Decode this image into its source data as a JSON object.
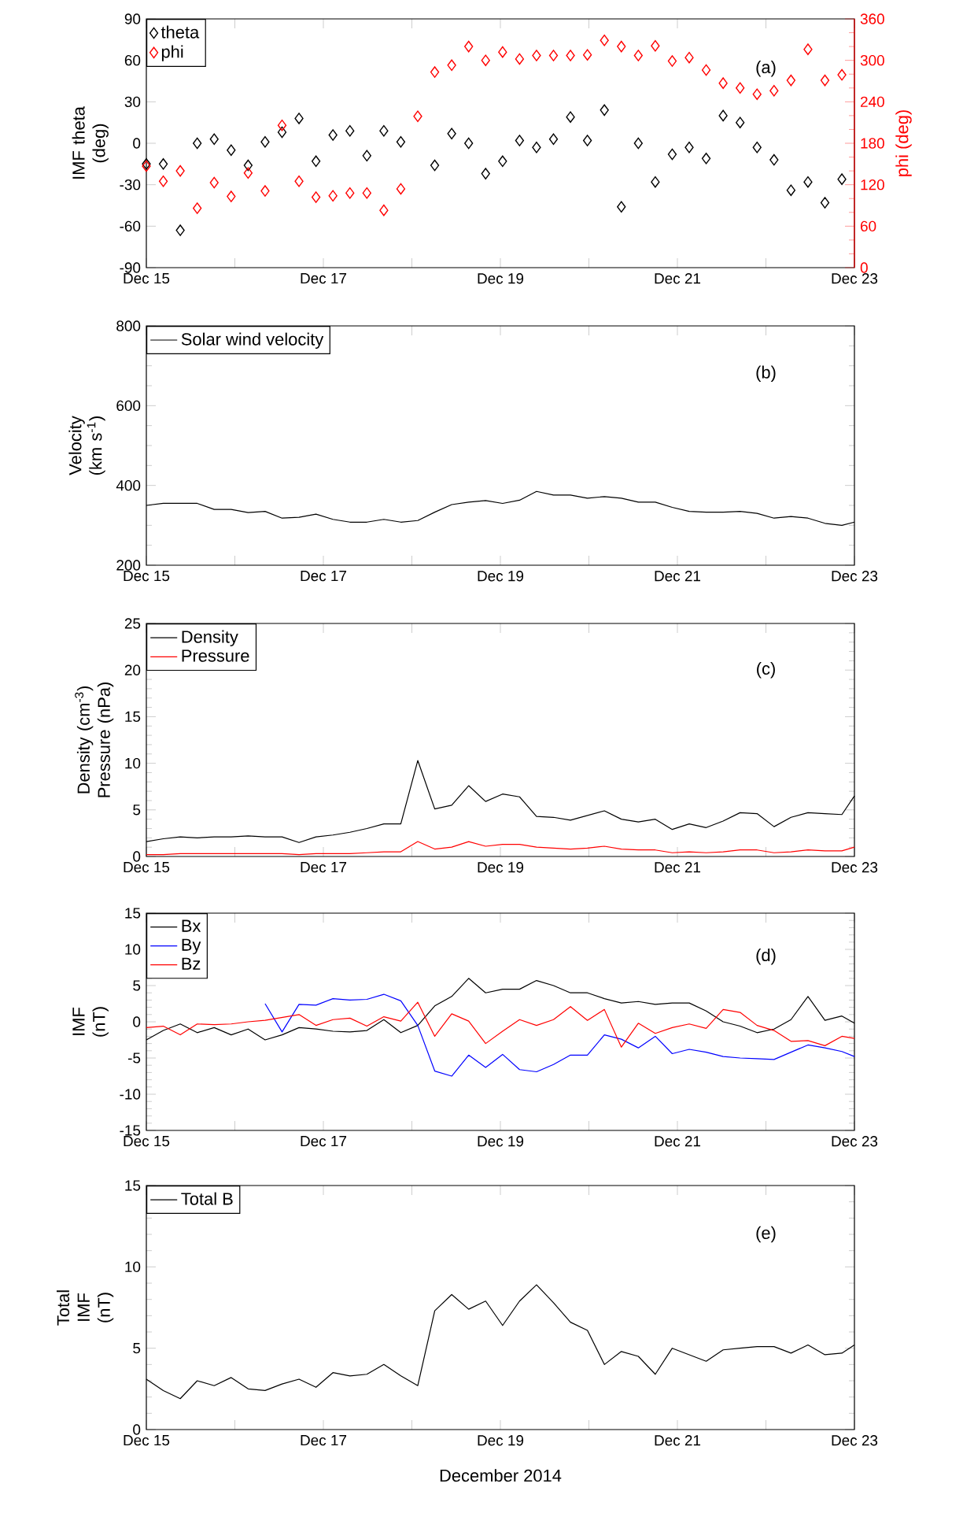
{
  "chart_data": [
    {
      "type": "scatter",
      "ylabel": "IMF theta (deg)",
      "y2label": "phi (deg)",
      "marker": "diamond",
      "legend": "top left",
      "annotations": [
        "(a)"
      ],
      "x": [
        "2014-12-15T00:00",
        "2014-12-15T04:36",
        "2014-12-15T09:12",
        "2014-12-15T13:48",
        "2014-12-15T18:24",
        "2014-12-15T23:00",
        "2014-12-16T03:36",
        "2014-12-16T08:12",
        "2014-12-16T12:48",
        "2014-12-16T17:24",
        "2014-12-16T22:00",
        "2014-12-17T02:36",
        "2014-12-17T07:12",
        "2014-12-17T11:48",
        "2014-12-17T16:24",
        "2014-12-17T21:00",
        "2014-12-18T01:36",
        "2014-12-18T06:12",
        "2014-12-18T10:48",
        "2014-12-18T15:24",
        "2014-12-18T20:00",
        "2014-12-19T00:36",
        "2014-12-19T05:12",
        "2014-12-19T09:48",
        "2014-12-19T14:24",
        "2014-12-19T19:00",
        "2014-12-19T23:36",
        "2014-12-20T04:12",
        "2014-12-20T08:48",
        "2014-12-20T13:24",
        "2014-12-20T18:00",
        "2014-12-20T22:36",
        "2014-12-21T03:12",
        "2014-12-21T07:48",
        "2014-12-21T12:24",
        "2014-12-21T17:00",
        "2014-12-21T21:36",
        "2014-12-22T02:12",
        "2014-12-22T06:48",
        "2014-12-22T11:24",
        "2014-12-22T16:00",
        "2014-12-22T20:36"
      ],
      "xlim": [
        "2014-12-15",
        "2014-12-23"
      ],
      "xticks": [
        {
          "value": "2014-12-15",
          "label": "Dec 15"
        },
        {
          "value": "2014-12-16",
          "label": null
        },
        {
          "value": "2014-12-17",
          "label": "Dec 17"
        },
        {
          "value": "2014-12-18",
          "label": null
        },
        {
          "value": "2014-12-19",
          "label": "Dec 19"
        },
        {
          "value": "2014-12-20",
          "label": null
        },
        {
          "value": "2014-12-21",
          "label": "Dec 21"
        },
        {
          "value": "2014-12-22",
          "label": null
        },
        {
          "value": "2014-12-23",
          "label": "Dec 23"
        }
      ],
      "ylim": [
        -90,
        90
      ],
      "yticks": [
        -90,
        -60,
        -30,
        0,
        30,
        60,
        90
      ],
      "y2lim": [
        0,
        360
      ],
      "y2ticks": [
        0,
        60,
        120,
        180,
        240,
        300,
        360
      ],
      "series": [
        {
          "name": "theta",
          "color": "#000000",
          "values": [
            -15,
            -15,
            -63,
            0,
            3,
            -5,
            -16,
            1,
            8,
            18,
            -13,
            6,
            9,
            -9,
            9,
            1,
            null,
            -16,
            7,
            0,
            -22,
            -13,
            2,
            -3,
            3,
            19,
            2,
            24,
            -46,
            0,
            -28,
            -8,
            -3,
            -11,
            20,
            15,
            -3,
            -12,
            -34,
            -28,
            -43,
            -26
          ]
        },
        {
          "name": "phi",
          "color": "#ff0000",
          "axis": "y2",
          "values": [
            147,
            125,
            140,
            86,
            123,
            103,
            137,
            111,
            206,
            125,
            102,
            104,
            108,
            108,
            83,
            114,
            219,
            283,
            293,
            320,
            300,
            312,
            302,
            307,
            307,
            307,
            308,
            329,
            320,
            307,
            321,
            299,
            304,
            286,
            267,
            260,
            251,
            256,
            271,
            316,
            271,
            279
          ]
        }
      ]
    },
    {
      "type": "line",
      "ylabel": "Velocity (km s$^{-1}$)",
      "legend": "top left",
      "annotations": [
        "(b)"
      ],
      "x": [
        "2014-12-15T00:00",
        "2014-12-15T04:36",
        "2014-12-15T09:12",
        "2014-12-15T13:48",
        "2014-12-15T18:24",
        "2014-12-15T23:00",
        "2014-12-16T03:36",
        "2014-12-16T08:12",
        "2014-12-16T12:48",
        "2014-12-16T17:24",
        "2014-12-16T22:00",
        "2014-12-17T02:36",
        "2014-12-17T07:12",
        "2014-12-17T11:48",
        "2014-12-17T16:24",
        "2014-12-17T21:00",
        "2014-12-18T01:36",
        "2014-12-18T06:12",
        "2014-12-18T10:48",
        "2014-12-18T15:24",
        "2014-12-18T20:00",
        "2014-12-19T00:36",
        "2014-12-19T05:12",
        "2014-12-19T09:48",
        "2014-12-19T14:24",
        "2014-12-19T19:00",
        "2014-12-19T23:36",
        "2014-12-20T04:12",
        "2014-12-20T08:48",
        "2014-12-20T13:24",
        "2014-12-20T18:00",
        "2014-12-20T22:36",
        "2014-12-21T03:12",
        "2014-12-21T07:48",
        "2014-12-21T12:24",
        "2014-12-21T17:00",
        "2014-12-21T21:36",
        "2014-12-22T02:12",
        "2014-12-22T06:48",
        "2014-12-22T11:24",
        "2014-12-22T16:00",
        "2014-12-22T20:36",
        "2014-12-23T00:00"
      ],
      "xlim": [
        "2014-12-15",
        "2014-12-23"
      ],
      "xticks": [
        {
          "value": "2014-12-15",
          "label": "Dec 15"
        },
        {
          "value": "2014-12-16",
          "label": null
        },
        {
          "value": "2014-12-17",
          "label": "Dec 17"
        },
        {
          "value": "2014-12-18",
          "label": null
        },
        {
          "value": "2014-12-19",
          "label": "Dec 19"
        },
        {
          "value": "2014-12-20",
          "label": null
        },
        {
          "value": "2014-12-21",
          "label": "Dec 21"
        },
        {
          "value": "2014-12-22",
          "label": null
        },
        {
          "value": "2014-12-23",
          "label": "Dec 23"
        }
      ],
      "ylim": [
        200,
        800
      ],
      "yticks": [
        200,
        400,
        600,
        800
      ],
      "series": [
        {
          "name": "Solar wind velocity",
          "color": "#000000",
          "values": [
            350,
            355,
            355,
            355,
            340,
            340,
            332,
            335,
            318,
            320,
            328,
            315,
            308,
            308,
            315,
            308,
            312,
            333,
            352,
            358,
            362,
            355,
            363,
            385,
            376,
            376,
            368,
            372,
            368,
            358,
            358,
            345,
            335,
            333,
            333,
            335,
            330,
            318,
            322,
            318,
            305,
            300,
            308
          ]
        }
      ]
    },
    {
      "type": "line",
      "ylabel": "Density (cm$^{-3}$) Pressure (nPa)",
      "legend": "top left",
      "annotations": [
        "(c)"
      ],
      "x": [
        "2014-12-15T00:00",
        "2014-12-15T04:36",
        "2014-12-15T09:12",
        "2014-12-15T13:48",
        "2014-12-15T18:24",
        "2014-12-15T23:00",
        "2014-12-16T03:36",
        "2014-12-16T08:12",
        "2014-12-16T12:48",
        "2014-12-16T17:24",
        "2014-12-16T22:00",
        "2014-12-17T02:36",
        "2014-12-17T07:12",
        "2014-12-17T11:48",
        "2014-12-17T16:24",
        "2014-12-17T21:00",
        "2014-12-18T01:36",
        "2014-12-18T06:12",
        "2014-12-18T10:48",
        "2014-12-18T15:24",
        "2014-12-18T20:00",
        "2014-12-19T00:36",
        "2014-12-19T05:12",
        "2014-12-19T09:48",
        "2014-12-19T14:24",
        "2014-12-19T19:00",
        "2014-12-19T23:36",
        "2014-12-20T04:12",
        "2014-12-20T08:48",
        "2014-12-20T13:24",
        "2014-12-20T18:00",
        "2014-12-20T22:36",
        "2014-12-21T03:12",
        "2014-12-21T07:48",
        "2014-12-21T12:24",
        "2014-12-21T17:00",
        "2014-12-21T21:36",
        "2014-12-22T02:12",
        "2014-12-22T06:48",
        "2014-12-22T11:24",
        "2014-12-22T16:00",
        "2014-12-22T20:36",
        "2014-12-23T00:00"
      ],
      "xlim": [
        "2014-12-15",
        "2014-12-23"
      ],
      "xticks": [
        {
          "value": "2014-12-15",
          "label": "Dec 15"
        },
        {
          "value": "2014-12-16",
          "label": null
        },
        {
          "value": "2014-12-17",
          "label": "Dec 17"
        },
        {
          "value": "2014-12-18",
          "label": null
        },
        {
          "value": "2014-12-19",
          "label": "Dec 19"
        },
        {
          "value": "2014-12-20",
          "label": null
        },
        {
          "value": "2014-12-21",
          "label": "Dec 21"
        },
        {
          "value": "2014-12-22",
          "label": null
        },
        {
          "value": "2014-12-23",
          "label": "Dec 23"
        }
      ],
      "ylim": [
        0,
        25
      ],
      "yticks": [
        0,
        5,
        10,
        15,
        20,
        25
      ],
      "series": [
        {
          "name": "Density",
          "color": "#000000",
          "values": [
            1.6,
            1.9,
            2.1,
            2.0,
            2.1,
            2.1,
            2.2,
            2.1,
            2.1,
            1.5,
            2.1,
            2.3,
            2.6,
            3.0,
            3.5,
            3.5,
            10.3,
            5.1,
            5.5,
            7.6,
            5.9,
            6.7,
            6.4,
            4.3,
            4.2,
            3.9,
            4.4,
            4.9,
            4.0,
            3.7,
            4.0,
            2.9,
            3.5,
            3.1,
            3.8,
            4.7,
            4.6,
            3.2,
            4.2,
            4.7,
            4.6,
            4.5,
            6.5
          ]
        },
        {
          "name": "Pressure",
          "color": "#ff0000",
          "values": [
            0.2,
            0.2,
            0.3,
            0.3,
            0.3,
            0.3,
            0.3,
            0.3,
            0.3,
            0.2,
            0.3,
            0.3,
            0.3,
            0.4,
            0.5,
            0.5,
            1.6,
            0.8,
            1.0,
            1.6,
            1.1,
            1.3,
            1.3,
            1.0,
            0.9,
            0.8,
            0.9,
            1.1,
            0.8,
            0.7,
            0.7,
            0.4,
            0.5,
            0.4,
            0.5,
            0.7,
            0.7,
            0.4,
            0.5,
            0.7,
            0.6,
            0.6,
            1.0
          ]
        }
      ]
    },
    {
      "type": "line",
      "ylabel": "IMF (nT)",
      "legend": "top left",
      "annotations": [
        "(d)"
      ],
      "x": [
        "2014-12-15T00:00",
        "2014-12-15T04:36",
        "2014-12-15T09:12",
        "2014-12-15T13:48",
        "2014-12-15T18:24",
        "2014-12-15T23:00",
        "2014-12-16T03:36",
        "2014-12-16T08:12",
        "2014-12-16T12:48",
        "2014-12-16T17:24",
        "2014-12-16T22:00",
        "2014-12-17T02:36",
        "2014-12-17T07:12",
        "2014-12-17T11:48",
        "2014-12-17T16:24",
        "2014-12-17T21:00",
        "2014-12-18T01:36",
        "2014-12-18T06:12",
        "2014-12-18T10:48",
        "2014-12-18T15:24",
        "2014-12-18T20:00",
        "2014-12-19T00:36",
        "2014-12-19T05:12",
        "2014-12-19T09:48",
        "2014-12-19T14:24",
        "2014-12-19T19:00",
        "2014-12-19T23:36",
        "2014-12-20T04:12",
        "2014-12-20T08:48",
        "2014-12-20T13:24",
        "2014-12-20T18:00",
        "2014-12-20T22:36",
        "2014-12-21T03:12",
        "2014-12-21T07:48",
        "2014-12-21T12:24",
        "2014-12-21T17:00",
        "2014-12-21T21:36",
        "2014-12-22T02:12",
        "2014-12-22T06:48",
        "2014-12-22T11:24",
        "2014-12-22T16:00",
        "2014-12-22T20:36",
        "2014-12-23T00:00"
      ],
      "xlim": [
        "2014-12-15",
        "2014-12-23"
      ],
      "xticks": [
        {
          "value": "2014-12-15",
          "label": "Dec 15"
        },
        {
          "value": "2014-12-16",
          "label": null
        },
        {
          "value": "2014-12-17",
          "label": "Dec 17"
        },
        {
          "value": "2014-12-18",
          "label": null
        },
        {
          "value": "2014-12-19",
          "label": "Dec 19"
        },
        {
          "value": "2014-12-20",
          "label": null
        },
        {
          "value": "2014-12-21",
          "label": "Dec 21"
        },
        {
          "value": "2014-12-22",
          "label": null
        },
        {
          "value": "2014-12-23",
          "label": "Dec 23"
        }
      ],
      "ylim": [
        -15,
        15
      ],
      "yticks": [
        -15,
        -10,
        -5,
        0,
        5,
        10,
        15
      ],
      "series": [
        {
          "name": "Bx",
          "color": "#000000",
          "values": [
            -2.5,
            -1.2,
            -0.3,
            -1.5,
            -0.8,
            -1.8,
            -1.0,
            -2.5,
            -1.8,
            -0.8,
            -1.0,
            -1.3,
            -1.4,
            -1.2,
            0.3,
            -1.5,
            -0.5,
            2.2,
            3.5,
            6.0,
            4.0,
            4.5,
            4.5,
            5.7,
            5.0,
            4.0,
            4.0,
            3.2,
            2.6,
            2.8,
            2.4,
            2.6,
            2.6,
            1.5,
            0.0,
            -0.6,
            -1.5,
            -1.0,
            0.3,
            3.5,
            0.2,
            0.8,
            -0.2
          ]
        },
        {
          "name": "By",
          "color": "#0000ff",
          "values": [
            null,
            null,
            null,
            null,
            null,
            null,
            null,
            2.5,
            -1.4,
            2.4,
            2.3,
            3.2,
            3.0,
            3.1,
            3.8,
            2.9,
            -0.5,
            -6.8,
            -7.5,
            -4.6,
            -6.3,
            -4.5,
            -6.6,
            -6.9,
            -5.9,
            -4.6,
            -4.6,
            -1.8,
            -2.4,
            -3.6,
            -2.0,
            -4.4,
            -3.8,
            -4.2,
            -4.8,
            -5.0,
            -5.1,
            -5.2,
            -4.2,
            -3.2,
            -3.6,
            -4.1,
            -4.8
          ]
        },
        {
          "name": "Bz",
          "color": "#ff0000",
          "values": [
            -0.8,
            -0.6,
            -1.8,
            -0.3,
            -0.4,
            -0.3,
            0.0,
            0.2,
            0.6,
            1.0,
            -0.5,
            0.3,
            0.5,
            -0.6,
            0.7,
            0.1,
            2.7,
            -2.0,
            1.1,
            0.1,
            -3.0,
            -1.3,
            0.3,
            -0.5,
            0.3,
            2.1,
            0.2,
            1.7,
            -3.5,
            -0.2,
            -1.6,
            -0.8,
            -0.3,
            -0.9,
            1.7,
            1.3,
            -0.5,
            -1.2,
            -2.7,
            -2.6,
            -3.3,
            -2.0,
            -2.3
          ]
        }
      ]
    },
    {
      "type": "line",
      "ylabel": "Total IMF (nT)",
      "xlabel": "December 2014",
      "legend": "top left",
      "annotations": [
        "(e)"
      ],
      "x": [
        "2014-12-15T00:00",
        "2014-12-15T04:36",
        "2014-12-15T09:12",
        "2014-12-15T13:48",
        "2014-12-15T18:24",
        "2014-12-15T23:00",
        "2014-12-16T03:36",
        "2014-12-16T08:12",
        "2014-12-16T12:48",
        "2014-12-16T17:24",
        "2014-12-16T22:00",
        "2014-12-17T02:36",
        "2014-12-17T07:12",
        "2014-12-17T11:48",
        "2014-12-17T16:24",
        "2014-12-17T21:00",
        "2014-12-18T01:36",
        "2014-12-18T06:12",
        "2014-12-18T10:48",
        "2014-12-18T15:24",
        "2014-12-18T20:00",
        "2014-12-19T00:36",
        "2014-12-19T05:12",
        "2014-12-19T09:48",
        "2014-12-19T14:24",
        "2014-12-19T19:00",
        "2014-12-19T23:36",
        "2014-12-20T04:12",
        "2014-12-20T08:48",
        "2014-12-20T13:24",
        "2014-12-20T18:00",
        "2014-12-20T22:36",
        "2014-12-21T03:12",
        "2014-12-21T07:48",
        "2014-12-21T12:24",
        "2014-12-21T17:00",
        "2014-12-21T21:36",
        "2014-12-22T02:12",
        "2014-12-22T06:48",
        "2014-12-22T11:24",
        "2014-12-22T16:00",
        "2014-12-22T20:36",
        "2014-12-23T00:00"
      ],
      "xlim": [
        "2014-12-15",
        "2014-12-23"
      ],
      "xticks": [
        {
          "value": "2014-12-15",
          "label": "Dec 15"
        },
        {
          "value": "2014-12-16",
          "label": null
        },
        {
          "value": "2014-12-17",
          "label": "Dec 17"
        },
        {
          "value": "2014-12-18",
          "label": null
        },
        {
          "value": "2014-12-19",
          "label": "Dec 19"
        },
        {
          "value": "2014-12-20",
          "label": null
        },
        {
          "value": "2014-12-21",
          "label": "Dec 21"
        },
        {
          "value": "2014-12-22",
          "label": null
        },
        {
          "value": "2014-12-23",
          "label": "Dec 23"
        }
      ],
      "ylim": [
        0,
        15
      ],
      "yticks": [
        0,
        5,
        10,
        15
      ],
      "series": [
        {
          "name": "Total B",
          "color": "#000000",
          "values": [
            3.1,
            2.4,
            1.9,
            3.0,
            2.7,
            3.2,
            2.5,
            2.4,
            2.8,
            3.1,
            2.6,
            3.5,
            3.3,
            3.4,
            4.0,
            3.3,
            2.7,
            7.3,
            8.3,
            7.4,
            7.9,
            6.4,
            7.9,
            8.9,
            7.8,
            6.6,
            6.1,
            4.0,
            4.8,
            4.5,
            3.4,
            5.0,
            4.6,
            4.2,
            4.9,
            5.0,
            5.1,
            5.1,
            4.7,
            5.2,
            4.6,
            4.7,
            5.2
          ]
        }
      ]
    }
  ]
}
